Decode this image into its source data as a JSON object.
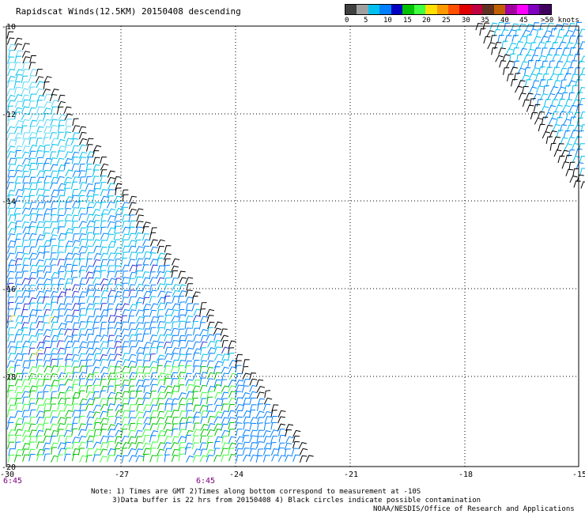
{
  "title": "Rapidscat Winds(12.5KM) 20150408 descending",
  "color_scale": {
    "labels": [
      "0",
      "5",
      "10",
      "15",
      "20",
      "25",
      "30",
      "35",
      "40",
      "45",
      ">50 knots"
    ],
    "colors": [
      "#404040",
      "#a0a0a0",
      "#00c0f0",
      "#0080ff",
      "#0000c0",
      "#00c000",
      "#40ff40",
      "#ffe000",
      "#ff9900",
      "#ff5000",
      "#e00000",
      "#c00040",
      "#603020",
      "#c06000",
      "#a000a0",
      "#ff00ff",
      "#8000c0",
      "#400060"
    ]
  },
  "map": {
    "lat_labels": [
      "-10",
      "-12",
      "-14",
      "-16",
      "-18",
      "-20"
    ],
    "lon_labels": [
      "-30",
      "-27",
      "-24",
      "-21",
      "-18",
      "-15"
    ],
    "time_labels": [
      "6:45",
      "6:45"
    ]
  },
  "notes": {
    "line1": "Note: 1) Times are GMT 2)Times along bottom correspond to measurement at -10S",
    "line2": "3)Data buffer is 22 hrs from 20150408 4) Black circles indicate possible contamination"
  },
  "credit": "NOAA/NESDIS/Office of Research and Applications"
}
